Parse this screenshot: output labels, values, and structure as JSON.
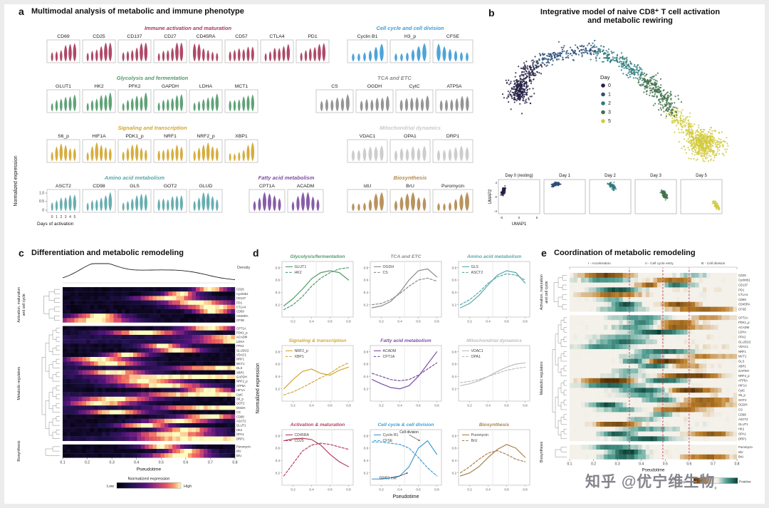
{
  "watermark": {
    "text": "知乎 @优宁维生物"
  },
  "chart_data": [
    {
      "id": "a",
      "panel_letter": "a",
      "type": "violin",
      "title": "Multimodal analysis of metabolic and immune phenotype",
      "ylabel": "Normalized expression",
      "xlabel": "Days of activation",
      "yticks": [
        "1.0",
        "0.5",
        "0"
      ],
      "x_categories": [
        "0",
        "1",
        "2",
        "3",
        "4",
        "5"
      ],
      "ylim": [
        0,
        1
      ],
      "groups": [
        {
          "name": "Immune activation and maturation",
          "color": "#a8395b",
          "row": 0,
          "markers": [
            "CD69",
            "CD25",
            "CD137",
            "CD27",
            "CD45RA",
            "CD57",
            "CTLA4",
            "PD1"
          ],
          "trends": [
            "up",
            "up",
            "up",
            "up",
            "down",
            "flatup",
            "up",
            "up"
          ]
        },
        {
          "name": "Cell cycle and cell division",
          "color": "#3f9cd6",
          "row": 0,
          "markers": [
            "Cyclin B1",
            "H3_p",
            "CFSE"
          ],
          "trends": [
            "late",
            "late",
            "down"
          ]
        },
        {
          "name": "Glycolysis and fermentation",
          "color": "#519a6a",
          "row": 1,
          "markers": [
            "GLUT1",
            "HK2",
            "PFK2",
            "GAPDH",
            "LDHA",
            "MCT1"
          ],
          "trends": [
            "up",
            "up",
            "up",
            "up",
            "up",
            "flatup"
          ]
        },
        {
          "name": "TCA and ETC",
          "color": "#8c8c8c",
          "row": 1,
          "markers": [
            "CS",
            "OGDH",
            "CytC",
            "ATP5A"
          ],
          "trends": [
            "flatup",
            "flatup",
            "flatup",
            "flatup"
          ]
        },
        {
          "name": "Signaling and transcription",
          "color": "#d3a62e",
          "row": 2,
          "markers": [
            "S6_p",
            "HIF1A",
            "PDK1_p",
            "NRF1",
            "NRF2_p",
            "XBP1"
          ],
          "trends": [
            "mid",
            "mid",
            "mid",
            "flatup",
            "mid",
            "late"
          ]
        },
        {
          "name": "Mitochondrial dynamics",
          "color": "#c9c9c9",
          "row": 2,
          "markers": [
            "VDAC1",
            "OPA1",
            "DRP1"
          ],
          "trends": [
            "flatup",
            "flatup",
            "flatup"
          ]
        },
        {
          "name": "Amino acid metabolism",
          "color": "#5aa7a9",
          "row": 3,
          "markers": [
            "ASCT2",
            "CD98",
            "GLS",
            "GOT2",
            "GLUD"
          ],
          "trends": [
            "up",
            "up",
            "up",
            "flatup",
            "mid"
          ]
        },
        {
          "name": "Fatty acid metabolism",
          "color": "#7d4fa2",
          "row": 3,
          "markers": [
            "CPT1A",
            "ACADM"
          ],
          "trends": [
            "mid",
            "mid"
          ]
        },
        {
          "name": "Biosynthesis",
          "color": "#b38a50",
          "row": 3,
          "markers": [
            "IdU",
            "BrU",
            "Puromycin"
          ],
          "trends": [
            "late",
            "mid",
            "late"
          ]
        }
      ]
    },
    {
      "id": "b",
      "panel_letter": "b",
      "type": "scatter",
      "title_line1": "Integrative model of naive CD8⁺ T cell activation",
      "title_line2": "and metabolic rewiring",
      "legend_title": "Day",
      "days": [
        {
          "label": "0",
          "color": "#232144"
        },
        {
          "label": "1",
          "color": "#2c4f77"
        },
        {
          "label": "2",
          "color": "#2f7a7c"
        },
        {
          "label": "3",
          "color": "#41714a"
        },
        {
          "label": "5",
          "color": "#d2cb3e"
        }
      ],
      "subpanel_titles": [
        "Day 0 (resting)",
        "Day 1",
        "Day 2",
        "Day 3",
        "Day 5"
      ],
      "axis": {
        "xlabel": "UMAP1",
        "ylabel": "UMAP2",
        "xticks": [
          "-5",
          "0",
          "5"
        ],
        "yticks": [
          "4",
          "0",
          "-4"
        ]
      }
    },
    {
      "id": "c",
      "panel_letter": "c",
      "type": "heatmap",
      "title": "Differentiation and metabolic remodeling",
      "density_label": "Density",
      "xlabel": "Pseudotime",
      "xticks": [
        "0.1",
        "0.2",
        "0.3",
        "0.4",
        "0.5",
        "0.6",
        "0.7",
        "0.8"
      ],
      "x_range": [
        0.1,
        0.8
      ],
      "colormap": "magma",
      "colorbar": {
        "title": "Normalized expression",
        "min_label": "Low",
        "max_label": "High"
      },
      "row_groups": [
        {
          "name": "Activation, maturation and cell cycle",
          "name_lines": [
            "Activation, maturation",
            "and cell cycle"
          ],
          "rows": [
            "CD25",
            "CyclinB1",
            "CD137",
            "PD1",
            "CTLA4",
            "CD69",
            "CD45RA",
            "CFSE"
          ]
        },
        {
          "name": "Metabolic regulators",
          "name_lines": [
            "Metabolic regulators"
          ],
          "rows": [
            "CPT1A",
            "PDK1_p",
            "ACADM",
            "LDHA",
            "PFK2",
            "GLUD1/2",
            "VDAC1",
            "NRF1",
            "MCT1",
            "GLS",
            "XBP1",
            "GAPDH",
            "NRF2_p",
            "ATP5A",
            "HIF1A",
            "CytC",
            "S6_p",
            "GOT2",
            "OGDH",
            "CS",
            "CD98",
            "ASCT2",
            "GLUT1",
            "HK2",
            "OPA1",
            "DRP1"
          ]
        },
        {
          "name": "Biosynthesis",
          "name_lines": [
            "Biosynthesis"
          ],
          "rows": [
            "Puromycin",
            "IdU",
            "BrU"
          ]
        }
      ]
    },
    {
      "id": "d",
      "panel_letter": "d",
      "type": "line",
      "ylabel": "Normalized expression",
      "xlabel": "Pseudotime",
      "x": [
        0.1,
        0.2,
        0.3,
        0.4,
        0.5,
        0.6,
        0.7,
        0.8
      ],
      "xticks": [
        "0.2",
        "0.4",
        "0.6",
        "0.8"
      ],
      "yticks": [
        "0.2",
        "0.4",
        "0.6",
        "0.8"
      ],
      "ylim": [
        0,
        0.9
      ],
      "xlim": [
        0.08,
        0.85
      ],
      "ref_l": [
        0.45,
        0.62
      ],
      "subplots": [
        {
          "title": "Glycolysis/fermentation",
          "color": "#519a6a",
          "series": [
            {
              "name": "GLUT1",
              "style": "solid",
              "y": [
                0.18,
                0.3,
                0.45,
                0.62,
                0.72,
                0.75,
                0.72,
                0.6
              ]
            },
            {
              "name": "HK2",
              "style": "dashed",
              "y": [
                0.12,
                0.2,
                0.33,
                0.5,
                0.63,
                0.72,
                0.78,
                0.8
              ]
            }
          ]
        },
        {
          "title": "TCA and ETC",
          "color": "#8c8c8c",
          "series": [
            {
              "name": "OGDH",
              "style": "solid",
              "y": [
                0.15,
                0.18,
                0.25,
                0.4,
                0.6,
                0.75,
                0.78,
                0.65
              ]
            },
            {
              "name": "CS",
              "style": "dashed",
              "y": [
                0.2,
                0.22,
                0.28,
                0.38,
                0.5,
                0.6,
                0.63,
                0.58
              ]
            }
          ]
        },
        {
          "title": "Amino acid metabolism",
          "color": "#5aa7a9",
          "series": [
            {
              "name": "GLS",
              "style": "solid",
              "y": [
                0.15,
                0.22,
                0.35,
                0.52,
                0.68,
                0.75,
                0.72,
                0.55
              ]
            },
            {
              "name": "ASCT2",
              "style": "dashed",
              "y": [
                0.2,
                0.28,
                0.4,
                0.55,
                0.65,
                0.7,
                0.68,
                0.6
              ]
            }
          ]
        },
        {
          "title": "Signaling & transcription",
          "color": "#d3a62e",
          "series": [
            {
              "name": "NRF2_p",
              "style": "solid",
              "y": [
                0.2,
                0.35,
                0.48,
                0.52,
                0.45,
                0.42,
                0.5,
                0.55
              ]
            },
            {
              "name": "XBP1",
              "style": "dashed",
              "y": [
                0.1,
                0.15,
                0.22,
                0.3,
                0.38,
                0.45,
                0.55,
                0.62
              ]
            }
          ]
        },
        {
          "title": "Fatty acid metabolism",
          "color": "#7d4fa2",
          "series": [
            {
              "name": "ACADM",
              "style": "solid",
              "y": [
                0.35,
                0.28,
                0.22,
                0.2,
                0.25,
                0.4,
                0.6,
                0.8
              ]
            },
            {
              "name": "CPT1A",
              "style": "dashed",
              "y": [
                0.45,
                0.4,
                0.35,
                0.33,
                0.35,
                0.42,
                0.52,
                0.62
              ]
            }
          ]
        },
        {
          "title": "Mitochondrial dynamics",
          "color": "#bdbdbd",
          "series": [
            {
              "name": "VDAC1",
              "style": "solid",
              "y": [
                0.25,
                0.28,
                0.33,
                0.4,
                0.48,
                0.55,
                0.6,
                0.62
              ]
            },
            {
              "name": "OPA1",
              "style": "dashed",
              "y": [
                0.3,
                0.32,
                0.35,
                0.4,
                0.45,
                0.5,
                0.53,
                0.55
              ]
            }
          ]
        },
        {
          "title": "Activation & maturation",
          "color": "#b5405c",
          "series": [
            {
              "name": "CD45RA",
              "style": "solid",
              "y": [
                0.72,
                0.75,
                0.76,
                0.74,
                0.65,
                0.5,
                0.38,
                0.3
              ]
            },
            {
              "name": "CD25",
              "style": "dashed",
              "y": [
                0.15,
                0.35,
                0.55,
                0.65,
                0.68,
                0.66,
                0.62,
                0.58
              ]
            }
          ]
        },
        {
          "title": "Cell cycle & cell division",
          "color": "#3f9cd6",
          "series": [
            {
              "name": "Cyclin B1",
              "style": "solid",
              "y": [
                0.1,
                0.1,
                0.12,
                0.15,
                0.3,
                0.6,
                0.72,
                0.5
              ]
            },
            {
              "name": "CFSE",
              "style": "dashed",
              "y": [
                0.7,
                0.7,
                0.68,
                0.66,
                0.6,
                0.45,
                0.28,
                0.15
              ]
            }
          ],
          "annotations": [
            {
              "text": "Cell division",
              "tx": 0.5,
              "ty": 0.84,
              "ax": 0.615,
              "ay": 0.72
            },
            {
              "text": "G0/G1 exit",
              "tx": 0.27,
              "ty": 0.1,
              "ax": 0.485,
              "ay": 0.2
            }
          ]
        },
        {
          "title": "Biosynthesis",
          "color": "#a9824e",
          "series": [
            {
              "name": "Puromycin",
              "style": "solid",
              "y": [
                0.15,
                0.2,
                0.3,
                0.45,
                0.58,
                0.66,
                0.6,
                0.45
              ]
            },
            {
              "name": "BrU",
              "style": "dashed",
              "y": [
                0.2,
                0.3,
                0.42,
                0.52,
                0.56,
                0.5,
                0.42,
                0.38
              ]
            }
          ]
        }
      ]
    },
    {
      "id": "e",
      "panel_letter": "e",
      "type": "heatmap",
      "title": "Coordination of metabolic remodeling",
      "phases": [
        "I - Acceleration",
        "II - Cell cycle entry",
        "III - Cell division"
      ],
      "divider_values": [
        0.35,
        0.49,
        0.6
      ],
      "xlabel": "Pseudotime",
      "xticks": [
        "0.1",
        "0.2",
        "0.3",
        "0.4",
        "0.5",
        "0.6",
        "0.7",
        "0.8"
      ],
      "colormap": "brown-white-green diverging",
      "colorbar": {
        "min_label": "Negative",
        "mid_label": "0",
        "max_label": "Positive"
      },
      "row_groups": [
        {
          "name": "Activation, maturation and cell cycle",
          "name_lines": [
            "Activation, maturation",
            "and cell cycle"
          ],
          "rows": [
            "CD25",
            "CyclinB1",
            "CD137",
            "PD1",
            "CTLA4",
            "CD69",
            "CD45RA",
            "CFSE"
          ]
        },
        {
          "name": "Metabolic regulators",
          "name_lines": [
            "Metabolic regulators"
          ],
          "rows": [
            "CPT1A",
            "PDK1_p",
            "ACADM",
            "LDHA",
            "PFK2",
            "GLUD1/2",
            "VDAC1",
            "NRF1",
            "MCT1",
            "GLS",
            "XBP1",
            "GAPDH",
            "NRF2_p",
            "ATP5A",
            "HIF1A",
            "CytC",
            "S6_p",
            "GOT2",
            "OGDH",
            "CS",
            "CD98",
            "ASCT2",
            "GLUT1",
            "HK2",
            "OPA1",
            "DRP1"
          ]
        },
        {
          "name": "Biosynthesis",
          "name_lines": [
            "Biosynthesis"
          ],
          "rows": [
            "Puromycin",
            "IdU",
            "BrU"
          ]
        }
      ]
    }
  ]
}
